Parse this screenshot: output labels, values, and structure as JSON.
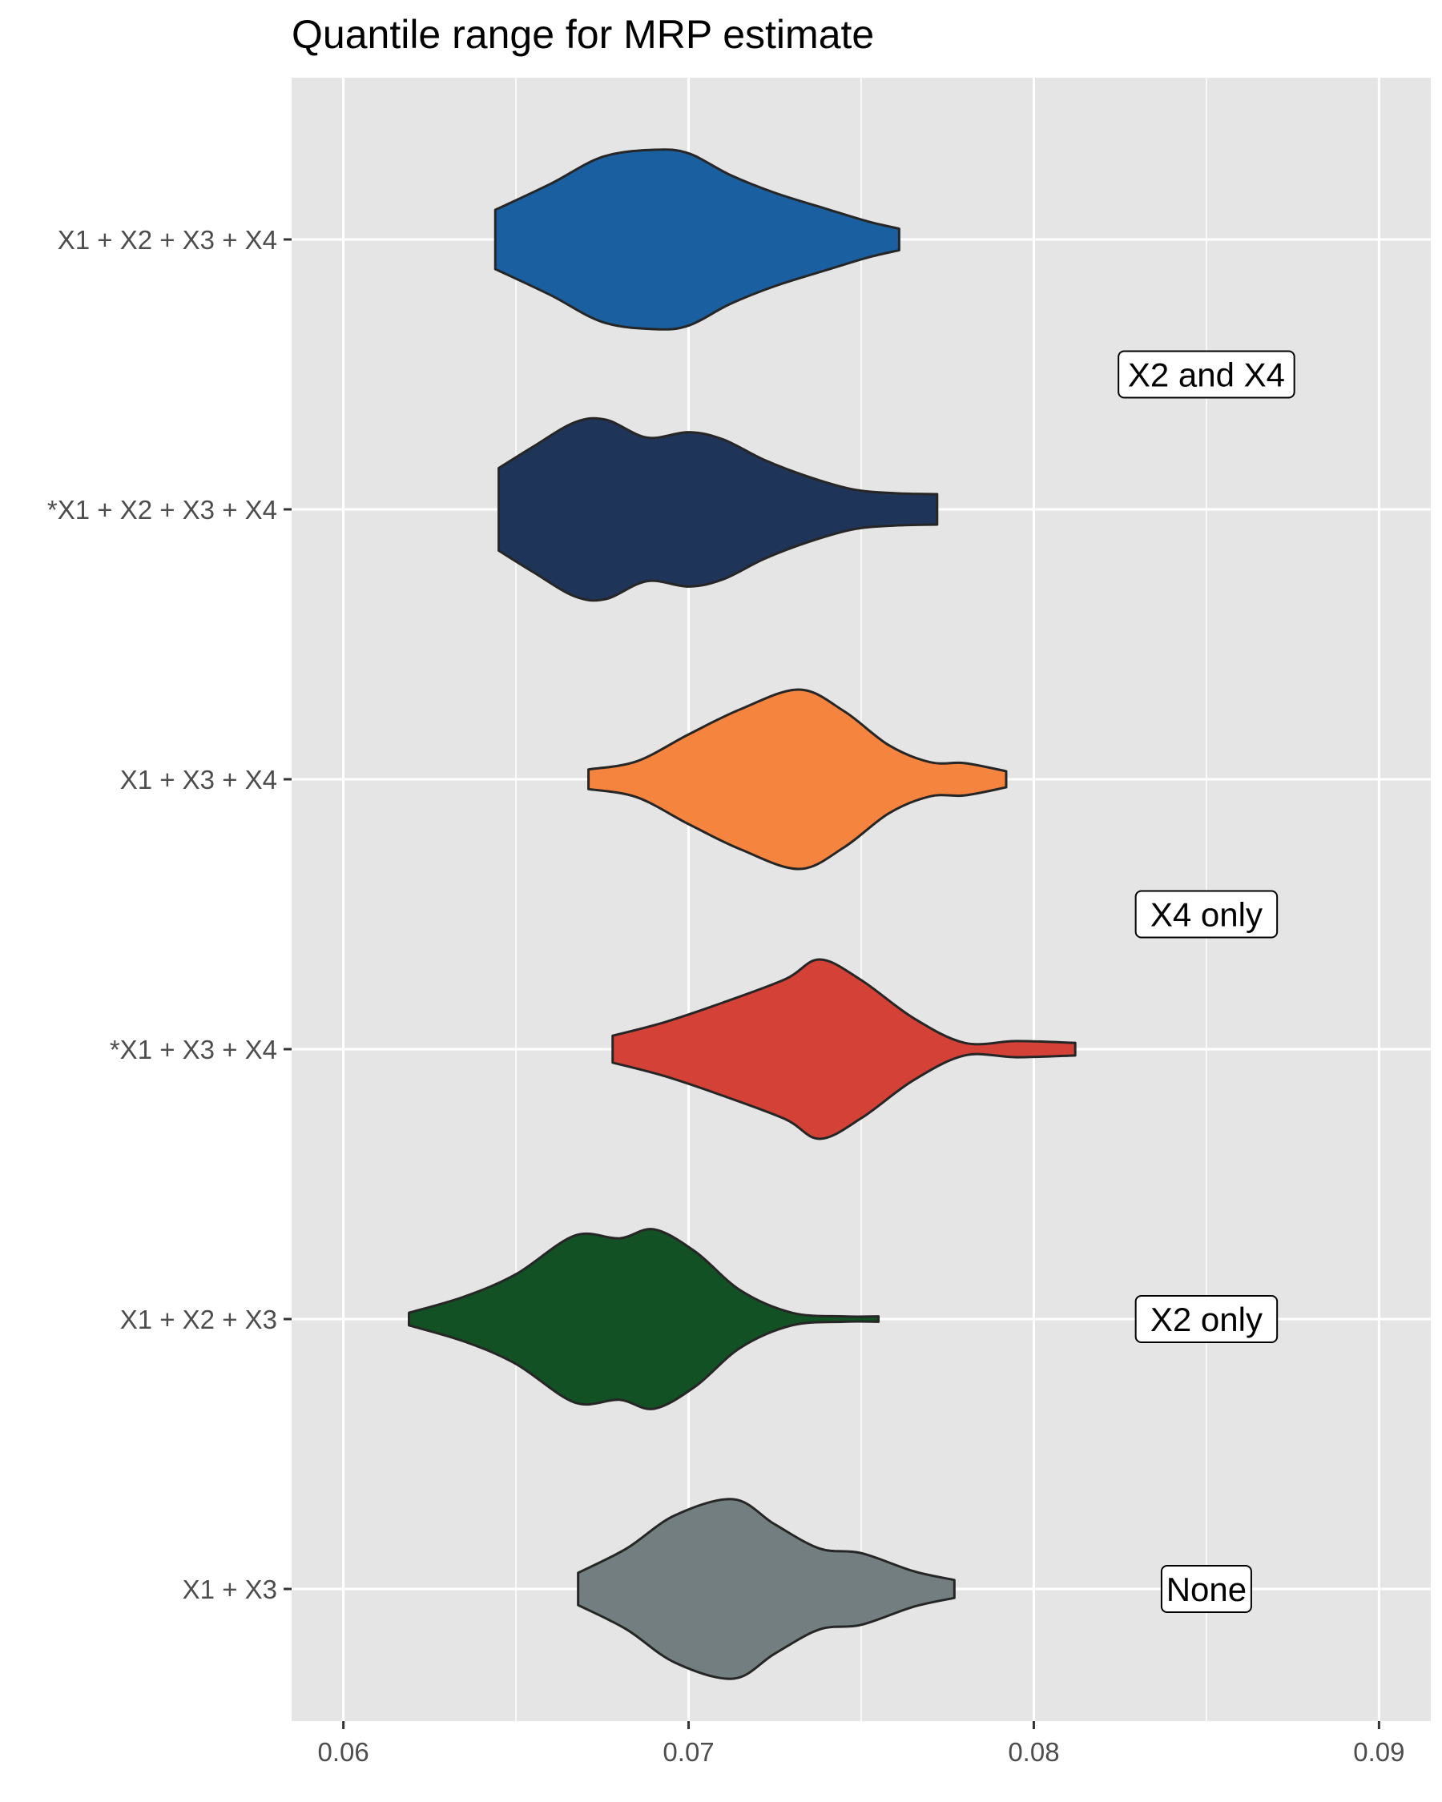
{
  "chart_data": {
    "type": "violin",
    "title": "Quantile range for MRP estimate",
    "xlabel": "",
    "ylabel": "",
    "xlim": [
      0.0585,
      0.0915
    ],
    "x_ticks": [
      "0.06",
      "0.07",
      "0.08",
      "0.09"
    ],
    "x_tick_values": [
      0.06,
      0.07,
      0.08,
      0.09
    ],
    "grid": true,
    "legend": "none",
    "panel_background": "#e5e5e5",
    "categories": [
      "X1 + X2 + X3 + X4",
      "*X1 + X2 + X3 + X4",
      "X1 + X3 + X4",
      "*X1 + X3 + X4",
      "X1 + X2 + X3",
      "X1 + X3"
    ],
    "series": [
      {
        "category": "X1 + X2 + X3 + X4",
        "color": "#1a5fa0",
        "min": 0.0644,
        "max": 0.0761,
        "density": [
          [
            0.0644,
            0.33
          ],
          [
            0.066,
            0.62
          ],
          [
            0.0675,
            0.92
          ],
          [
            0.069,
            1.0
          ],
          [
            0.07,
            0.96
          ],
          [
            0.0712,
            0.72
          ],
          [
            0.0725,
            0.52
          ],
          [
            0.074,
            0.34
          ],
          [
            0.0752,
            0.2
          ],
          [
            0.0761,
            0.12
          ]
        ]
      },
      {
        "category": "*X1 + X2 + X3 + X4",
        "color": "#1f3459",
        "min": 0.0645,
        "max": 0.0772,
        "density": [
          [
            0.0645,
            0.46
          ],
          [
            0.0655,
            0.7
          ],
          [
            0.0667,
            0.97
          ],
          [
            0.0676,
            1.0
          ],
          [
            0.0688,
            0.8
          ],
          [
            0.07,
            0.86
          ],
          [
            0.071,
            0.78
          ],
          [
            0.0722,
            0.55
          ],
          [
            0.0735,
            0.36
          ],
          [
            0.0748,
            0.22
          ],
          [
            0.076,
            0.18
          ],
          [
            0.0772,
            0.17
          ]
        ]
      },
      {
        "category": "X1 + X3 + X4",
        "color": "#f5843f",
        "min": 0.0671,
        "max": 0.0792,
        "density": [
          [
            0.0671,
            0.11
          ],
          [
            0.0685,
            0.2
          ],
          [
            0.07,
            0.5
          ],
          [
            0.0715,
            0.78
          ],
          [
            0.0732,
            1.0
          ],
          [
            0.0745,
            0.76
          ],
          [
            0.0758,
            0.38
          ],
          [
            0.077,
            0.19
          ],
          [
            0.078,
            0.18
          ],
          [
            0.0792,
            0.09
          ]
        ]
      },
      {
        "category": "*X1 + X3 + X4",
        "color": "#d44237",
        "min": 0.0678,
        "max": 0.0812,
        "density": [
          [
            0.0678,
            0.15
          ],
          [
            0.0693,
            0.3
          ],
          [
            0.071,
            0.52
          ],
          [
            0.0728,
            0.78
          ],
          [
            0.0738,
            1.0
          ],
          [
            0.075,
            0.77
          ],
          [
            0.0765,
            0.35
          ],
          [
            0.078,
            0.07
          ],
          [
            0.0795,
            0.09
          ],
          [
            0.0812,
            0.07
          ]
        ]
      },
      {
        "category": "X1 + X2 + X3",
        "color": "#115123",
        "min": 0.0619,
        "max": 0.0755,
        "density": [
          [
            0.0619,
            0.07
          ],
          [
            0.0635,
            0.25
          ],
          [
            0.065,
            0.5
          ],
          [
            0.0667,
            0.93
          ],
          [
            0.068,
            0.9
          ],
          [
            0.069,
            1.0
          ],
          [
            0.0702,
            0.75
          ],
          [
            0.0715,
            0.32
          ],
          [
            0.073,
            0.07
          ],
          [
            0.0745,
            0.03
          ],
          [
            0.0755,
            0.03
          ]
        ]
      },
      {
        "category": "X1 + X3",
        "color": "#737e81",
        "min": 0.0668,
        "max": 0.0777,
        "density": [
          [
            0.0668,
            0.18
          ],
          [
            0.0682,
            0.45
          ],
          [
            0.0696,
            0.82
          ],
          [
            0.0713,
            1.0
          ],
          [
            0.0725,
            0.72
          ],
          [
            0.0738,
            0.45
          ],
          [
            0.075,
            0.4
          ],
          [
            0.0765,
            0.2
          ],
          [
            0.0777,
            0.1
          ]
        ]
      }
    ],
    "annotations": [
      {
        "text": "X2 and X4",
        "x": 0.085,
        "y_between": [
          "X1 + X2 + X3 + X4",
          "*X1 + X2 + X3 + X4"
        ]
      },
      {
        "text": "X4 only",
        "x": 0.085,
        "y_between": [
          "X1 + X3 + X4",
          "*X1 + X3 + X4"
        ]
      },
      {
        "text": "X2 only",
        "x": 0.085,
        "y_at": "X1 + X2 + X3"
      },
      {
        "text": "None",
        "x": 0.085,
        "y_at": "X1 + X3"
      }
    ]
  }
}
